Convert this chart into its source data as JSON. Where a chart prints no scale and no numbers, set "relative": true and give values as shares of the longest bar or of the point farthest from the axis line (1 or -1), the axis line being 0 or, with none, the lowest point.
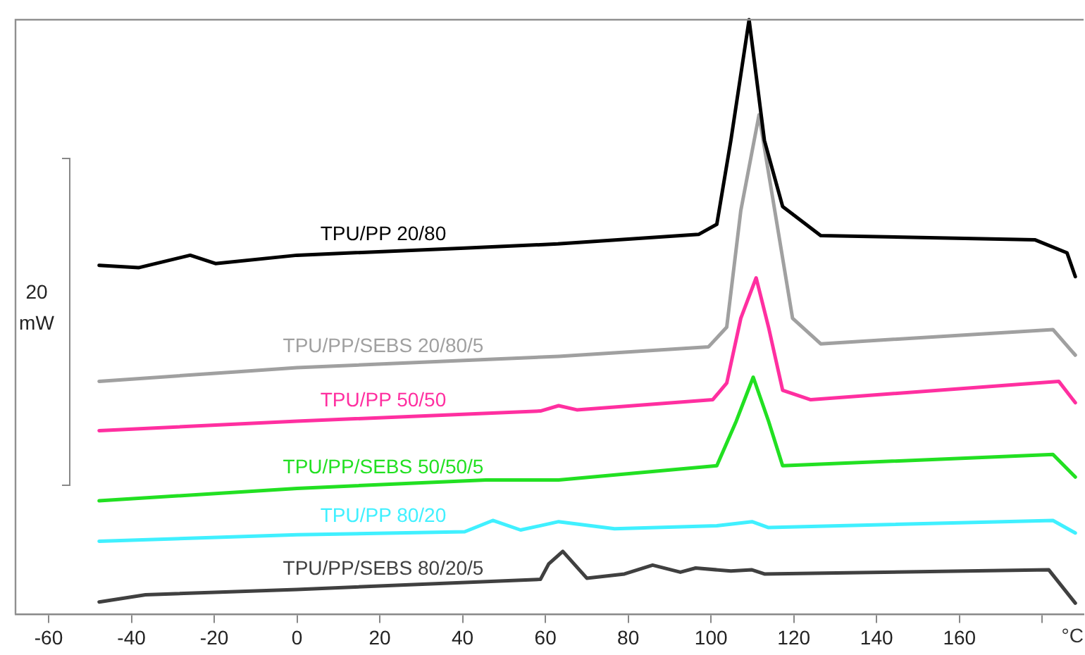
{
  "chart_data": {
    "type": "line",
    "relative": true,
    "xlabel": "°C",
    "annotations": [
      "20 mW"
    ],
    "xlim": [
      -68,
      190
    ],
    "xticks": [
      -60,
      -40,
      -20,
      0,
      20,
      40,
      60,
      80,
      100,
      120,
      140,
      160,
      {
        "value": 180,
        "label": null
      }
    ],
    "grid": false,
    "legend": false,
    "marker": "none",
    "line_style": "solid",
    "series": [
      {
        "name": "TPU/PP 20/80",
        "color": "#000000",
        "x": [
          -47.8,
          -38.3,
          -25.8,
          -19.7,
          0,
          40.5,
          63,
          97,
          101.4,
          104.8,
          109.2,
          112.9,
          117.3,
          126.5,
          178.2,
          186,
          188
        ],
        "values": [
          0.587,
          0.583,
          0.604,
          0.59,
          0.604,
          0.616,
          0.623,
          0.639,
          0.656,
          0.797,
          1,
          0.797,
          0.686,
          0.637,
          0.63,
          0.608,
          0.568
        ]
      },
      {
        "name": "TPU/PP/SEBS 20/80/5",
        "color": "#a0a0a0",
        "x": [
          -47.8,
          -14.7,
          0,
          63.2,
          99.4,
          103.8,
          107.2,
          111.6,
          115,
          119.7,
          126.5,
          182.6,
          188
        ],
        "values": [
          0.392,
          0.408,
          0.415,
          0.434,
          0.45,
          0.483,
          0.679,
          0.84,
          0.696,
          0.498,
          0.455,
          0.479,
          0.436
        ]
      },
      {
        "name": "TPU/PP 50/50",
        "color": "#ff2fa0",
        "x": [
          -47.8,
          0,
          58.8,
          63.2,
          67.6,
          100.4,
          103.8,
          107.2,
          110.9,
          113.9,
          117.3,
          124.1,
          184,
          188
        ],
        "values": [
          0.309,
          0.325,
          0.342,
          0.351,
          0.344,
          0.361,
          0.389,
          0.498,
          0.566,
          0.483,
          0.377,
          0.361,
          0.392,
          0.356
        ]
      },
      {
        "name": "TPU/PP/SEBS 50/50/5",
        "color": "#22e022",
        "x": [
          -47.8,
          0,
          45.6,
          63.2,
          101.4,
          106.1,
          110.2,
          113.9,
          117.3,
          182.6,
          188
        ],
        "values": [
          0.191,
          0.212,
          0.226,
          0.226,
          0.25,
          0.325,
          0.399,
          0.325,
          0.25,
          0.269,
          0.231
        ]
      },
      {
        "name": "TPU/PP 80/20",
        "color": "#40f0ff",
        "x": [
          -47.8,
          0,
          40.5,
          47.3,
          54,
          63.2,
          76.7,
          101.4,
          109.9,
          113.9,
          182.6,
          188
        ],
        "values": [
          0.123,
          0.134,
          0.139,
          0.158,
          0.142,
          0.156,
          0.144,
          0.149,
          0.156,
          0.146,
          0.158,
          0.137
        ]
      },
      {
        "name": "TPU/PP/SEBS 80/20/5",
        "color": "#404040",
        "x": [
          -47.8,
          -36.6,
          0,
          58.8,
          60.8,
          64.2,
          70,
          79.1,
          85.9,
          92.6,
          96.3,
          104.8,
          109.9,
          112.9,
          181.6,
          188
        ],
        "values": [
          0.021,
          0.033,
          0.042,
          0.059,
          0.085,
          0.106,
          0.061,
          0.068,
          0.083,
          0.071,
          0.078,
          0.073,
          0.075,
          0.068,
          0.075,
          0.019
        ]
      }
    ]
  }
}
